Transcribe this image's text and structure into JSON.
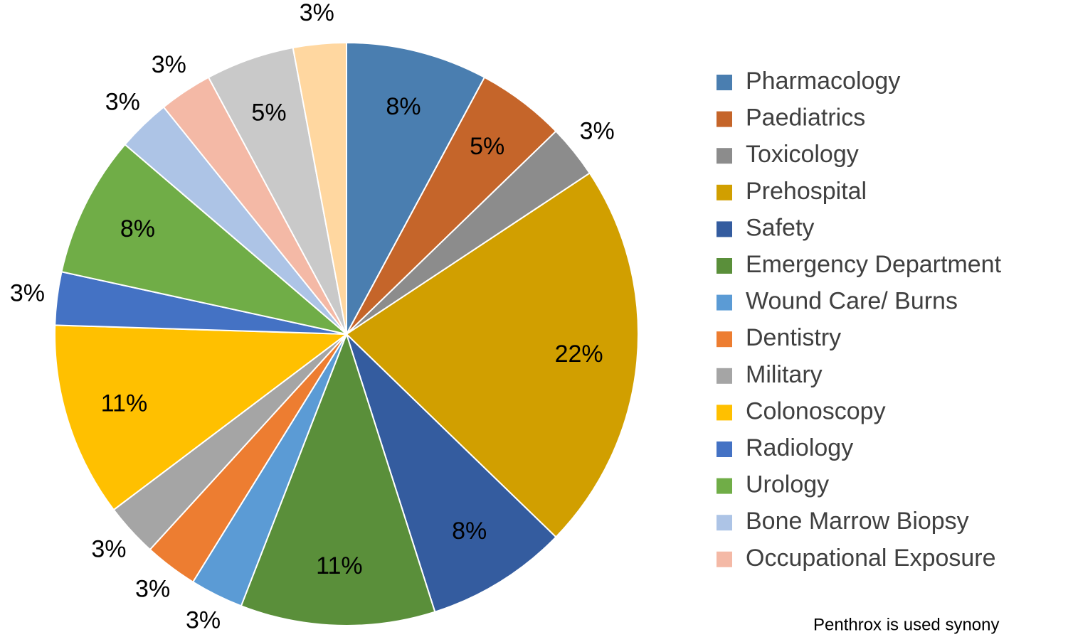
{
  "chart_data": {
    "type": "pie",
    "categories": [
      "Pharmacology",
      "Paediatrics",
      "Toxicology",
      "Prehospital",
      "Safety",
      "Emergency Department",
      "Wound Care/ Burns",
      "Dentistry",
      "Military",
      "Colonoscopy",
      "Radiology",
      "Urology",
      "Bone Marrow Biopsy",
      "Occupational Exposure",
      null,
      null
    ],
    "values": [
      8,
      5,
      3,
      22,
      8,
      11,
      3,
      3,
      3,
      11,
      3,
      8,
      3,
      3,
      5,
      3
    ],
    "value_labels": [
      "8%",
      "5%",
      "3%",
      "22%",
      "8%",
      "11%",
      "3%",
      "3%",
      "3%",
      "11%",
      "3%",
      "8%",
      "3%",
      "3%",
      "5%",
      "3%"
    ],
    "colors": [
      "#4a7eb0",
      "#c5652a",
      "#8c8c8c",
      "#d19f00",
      "#345c9f",
      "#5a8f3a",
      "#5b9bd5",
      "#ed7d31",
      "#a5a5a5",
      "#ffc000",
      "#4472c4",
      "#70ad47",
      "#adc4e6",
      "#f4b9a6",
      "#c9c9c9",
      "#ffd7a0"
    ],
    "legend": "right",
    "note": "Penthrox is used synony"
  }
}
